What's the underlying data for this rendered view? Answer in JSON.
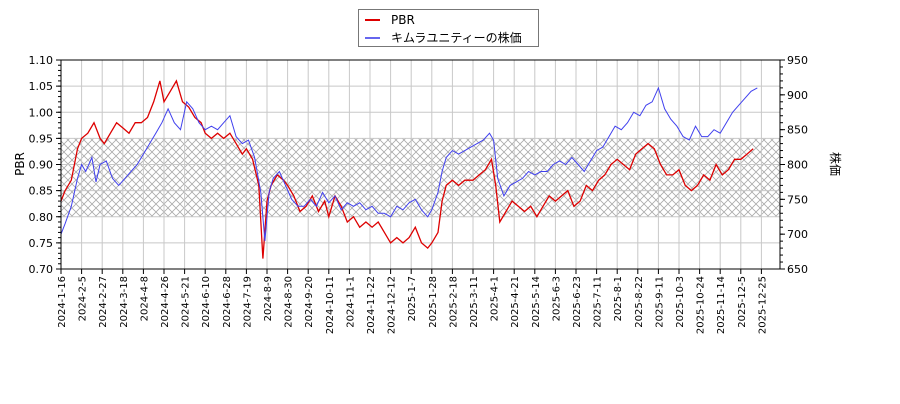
{
  "chart_data": {
    "type": "line",
    "title": "",
    "legend": {
      "position": "top-center",
      "entries": [
        {
          "name": "PBR",
          "color": "#dd0000"
        },
        {
          "name": "キムラユニティーの株価",
          "color": "#4040ee"
        }
      ]
    },
    "ylabel_left": "PBR",
    "ylabel_right": "株価",
    "xlabel": "",
    "ylim_left": [
      0.7,
      1.1
    ],
    "ylim_right": [
      650,
      950
    ],
    "yticks_left": [
      "0.70",
      "0.75",
      "0.80",
      "0.85",
      "0.90",
      "0.95",
      "1.00",
      "1.05",
      "1.10"
    ],
    "yticks_right": [
      "650",
      "700",
      "750",
      "800",
      "850",
      "900",
      "950"
    ],
    "grid": true,
    "shaded_band_left": [
      0.8,
      0.95
    ],
    "x_tick_labels": [
      "2024-1-16",
      "2024-2-5",
      "2024-2-27",
      "2024-3-18",
      "2024-4-8",
      "2024-4-26",
      "2024-5-21",
      "2024-6-10",
      "2024-6-28",
      "2024-7-19",
      "2024-8-9",
      "2024-8-30",
      "2024-9-20",
      "2024-10-11",
      "2024-11-1",
      "2024-11-22",
      "2024-12-12",
      "2025-1-7",
      "2025-1-28",
      "2025-2-18",
      "2025-3-11",
      "2025-4-1",
      "2025-4-21",
      "2025-5-14",
      "2025-6-3",
      "2025-6-23",
      "2025-7-11",
      "2025-8-1",
      "2025-8-22",
      "2025-9-11",
      "2025-10-3",
      "2025-10-24",
      "2025-11-14",
      "2025-12-5",
      "2025-12-25"
    ],
    "series": [
      {
        "name": "PBR",
        "axis": "left",
        "color": "#dd0000",
        "points_by_tick": [
          [
            0,
            0.83
          ],
          [
            0.2,
            0.85
          ],
          [
            0.5,
            0.87
          ],
          [
            0.8,
            0.93
          ],
          [
            1.0,
            0.95
          ],
          [
            1.3,
            0.96
          ],
          [
            1.6,
            0.98
          ],
          [
            1.9,
            0.95
          ],
          [
            2.1,
            0.94
          ],
          [
            2.4,
            0.96
          ],
          [
            2.7,
            0.98
          ],
          [
            3.0,
            0.97
          ],
          [
            3.3,
            0.96
          ],
          [
            3.6,
            0.98
          ],
          [
            3.9,
            0.98
          ],
          [
            4.2,
            0.99
          ],
          [
            4.5,
            1.02
          ],
          [
            4.8,
            1.06
          ],
          [
            5.0,
            1.02
          ],
          [
            5.3,
            1.04
          ],
          [
            5.6,
            1.06
          ],
          [
            5.9,
            1.02
          ],
          [
            6.2,
            1.01
          ],
          [
            6.5,
            0.99
          ],
          [
            6.8,
            0.98
          ],
          [
            7.0,
            0.96
          ],
          [
            7.3,
            0.95
          ],
          [
            7.6,
            0.96
          ],
          [
            7.9,
            0.95
          ],
          [
            8.2,
            0.96
          ],
          [
            8.5,
            0.94
          ],
          [
            8.8,
            0.92
          ],
          [
            9.0,
            0.93
          ],
          [
            9.3,
            0.91
          ],
          [
            9.6,
            0.86
          ],
          [
            9.8,
            0.72
          ],
          [
            10.0,
            0.83
          ],
          [
            10.2,
            0.86
          ],
          [
            10.5,
            0.88
          ],
          [
            10.8,
            0.87
          ],
          [
            11.0,
            0.86
          ],
          [
            11.3,
            0.84
          ],
          [
            11.6,
            0.81
          ],
          [
            11.9,
            0.82
          ],
          [
            12.2,
            0.84
          ],
          [
            12.5,
            0.81
          ],
          [
            12.8,
            0.83
          ],
          [
            13.0,
            0.8
          ],
          [
            13.3,
            0.84
          ],
          [
            13.6,
            0.82
          ],
          [
            13.9,
            0.79
          ],
          [
            14.2,
            0.8
          ],
          [
            14.5,
            0.78
          ],
          [
            14.8,
            0.79
          ],
          [
            15.1,
            0.78
          ],
          [
            15.4,
            0.79
          ],
          [
            15.7,
            0.77
          ],
          [
            16.0,
            0.75
          ],
          [
            16.3,
            0.76
          ],
          [
            16.6,
            0.75
          ],
          [
            16.9,
            0.76
          ],
          [
            17.2,
            0.78
          ],
          [
            17.5,
            0.75
          ],
          [
            17.8,
            0.74
          ],
          [
            18.0,
            0.75
          ],
          [
            18.3,
            0.77
          ],
          [
            18.5,
            0.83
          ],
          [
            18.7,
            0.86
          ],
          [
            19.0,
            0.87
          ],
          [
            19.3,
            0.86
          ],
          [
            19.6,
            0.87
          ],
          [
            20.0,
            0.87
          ],
          [
            20.3,
            0.88
          ],
          [
            20.6,
            0.89
          ],
          [
            20.9,
            0.91
          ],
          [
            21.1,
            0.86
          ],
          [
            21.3,
            0.79
          ],
          [
            21.6,
            0.81
          ],
          [
            21.9,
            0.83
          ],
          [
            22.2,
            0.82
          ],
          [
            22.5,
            0.81
          ],
          [
            22.8,
            0.82
          ],
          [
            23.1,
            0.8
          ],
          [
            23.4,
            0.82
          ],
          [
            23.7,
            0.84
          ],
          [
            24.0,
            0.83
          ],
          [
            24.3,
            0.84
          ],
          [
            24.6,
            0.85
          ],
          [
            24.9,
            0.82
          ],
          [
            25.2,
            0.83
          ],
          [
            25.5,
            0.86
          ],
          [
            25.8,
            0.85
          ],
          [
            26.1,
            0.87
          ],
          [
            26.4,
            0.88
          ],
          [
            26.7,
            0.9
          ],
          [
            27.0,
            0.91
          ],
          [
            27.3,
            0.9
          ],
          [
            27.6,
            0.89
          ],
          [
            27.9,
            0.92
          ],
          [
            28.2,
            0.93
          ],
          [
            28.5,
            0.94
          ],
          [
            28.8,
            0.93
          ],
          [
            29.1,
            0.9
          ],
          [
            29.4,
            0.88
          ],
          [
            29.7,
            0.88
          ],
          [
            30.0,
            0.89
          ],
          [
            30.3,
            0.86
          ],
          [
            30.6,
            0.85
          ],
          [
            30.9,
            0.86
          ],
          [
            31.2,
            0.88
          ],
          [
            31.5,
            0.87
          ],
          [
            31.8,
            0.9
          ],
          [
            32.1,
            0.88
          ],
          [
            32.4,
            0.89
          ],
          [
            32.7,
            0.91
          ],
          [
            33.0,
            0.91
          ],
          [
            33.3,
            0.92
          ],
          [
            33.6,
            0.93
          ]
        ]
      },
      {
        "name": "キムラユニティーの株価",
        "axis": "right",
        "color": "#4040ee",
        "points_by_tick": [
          [
            0,
            700
          ],
          [
            0.2,
            715
          ],
          [
            0.5,
            740
          ],
          [
            0.8,
            780
          ],
          [
            1.0,
            800
          ],
          [
            1.2,
            790
          ],
          [
            1.5,
            810
          ],
          [
            1.7,
            775
          ],
          [
            1.9,
            800
          ],
          [
            2.2,
            805
          ],
          [
            2.5,
            780
          ],
          [
            2.8,
            770
          ],
          [
            3.1,
            780
          ],
          [
            3.4,
            790
          ],
          [
            3.7,
            800
          ],
          [
            4.0,
            815
          ],
          [
            4.3,
            830
          ],
          [
            4.6,
            845
          ],
          [
            4.9,
            860
          ],
          [
            5.2,
            880
          ],
          [
            5.5,
            860
          ],
          [
            5.8,
            850
          ],
          [
            6.1,
            890
          ],
          [
            6.4,
            880
          ],
          [
            6.7,
            860
          ],
          [
            7.0,
            850
          ],
          [
            7.3,
            855
          ],
          [
            7.6,
            850
          ],
          [
            7.9,
            860
          ],
          [
            8.2,
            870
          ],
          [
            8.5,
            840
          ],
          [
            8.8,
            830
          ],
          [
            9.1,
            835
          ],
          [
            9.4,
            810
          ],
          [
            9.7,
            760
          ],
          [
            9.9,
            690
          ],
          [
            10.1,
            760
          ],
          [
            10.3,
            780
          ],
          [
            10.6,
            790
          ],
          [
            10.9,
            770
          ],
          [
            11.2,
            750
          ],
          [
            11.5,
            740
          ],
          [
            11.8,
            740
          ],
          [
            12.1,
            750
          ],
          [
            12.4,
            740
          ],
          [
            12.7,
            760
          ],
          [
            13.0,
            745
          ],
          [
            13.3,
            755
          ],
          [
            13.6,
            735
          ],
          [
            13.9,
            745
          ],
          [
            14.2,
            740
          ],
          [
            14.5,
            745
          ],
          [
            14.8,
            735
          ],
          [
            15.1,
            740
          ],
          [
            15.4,
            730
          ],
          [
            15.7,
            730
          ],
          [
            16.0,
            725
          ],
          [
            16.3,
            740
          ],
          [
            16.6,
            735
          ],
          [
            16.9,
            745
          ],
          [
            17.2,
            750
          ],
          [
            17.5,
            735
          ],
          [
            17.8,
            725
          ],
          [
            18.0,
            735
          ],
          [
            18.3,
            760
          ],
          [
            18.5,
            790
          ],
          [
            18.7,
            810
          ],
          [
            19.0,
            820
          ],
          [
            19.3,
            815
          ],
          [
            19.6,
            820
          ],
          [
            19.9,
            825
          ],
          [
            20.2,
            830
          ],
          [
            20.5,
            835
          ],
          [
            20.8,
            845
          ],
          [
            21.0,
            835
          ],
          [
            21.2,
            780
          ],
          [
            21.5,
            755
          ],
          [
            21.8,
            770
          ],
          [
            22.1,
            775
          ],
          [
            22.4,
            780
          ],
          [
            22.7,
            790
          ],
          [
            23.0,
            785
          ],
          [
            23.3,
            790
          ],
          [
            23.6,
            790
          ],
          [
            23.9,
            800
          ],
          [
            24.2,
            805
          ],
          [
            24.5,
            800
          ],
          [
            24.8,
            810
          ],
          [
            25.1,
            800
          ],
          [
            25.4,
            790
          ],
          [
            25.7,
            805
          ],
          [
            26.0,
            820
          ],
          [
            26.3,
            825
          ],
          [
            26.6,
            840
          ],
          [
            26.9,
            855
          ],
          [
            27.2,
            850
          ],
          [
            27.5,
            860
          ],
          [
            27.8,
            875
          ],
          [
            28.1,
            870
          ],
          [
            28.4,
            885
          ],
          [
            28.7,
            890
          ],
          [
            29.0,
            910
          ],
          [
            29.3,
            880
          ],
          [
            29.6,
            865
          ],
          [
            29.9,
            855
          ],
          [
            30.2,
            840
          ],
          [
            30.5,
            835
          ],
          [
            30.8,
            855
          ],
          [
            31.1,
            840
          ],
          [
            31.4,
            840
          ],
          [
            31.7,
            850
          ],
          [
            32.0,
            845
          ],
          [
            32.3,
            860
          ],
          [
            32.6,
            875
          ],
          [
            32.9,
            885
          ],
          [
            33.2,
            895
          ],
          [
            33.5,
            905
          ],
          [
            33.8,
            910
          ]
        ]
      }
    ]
  }
}
